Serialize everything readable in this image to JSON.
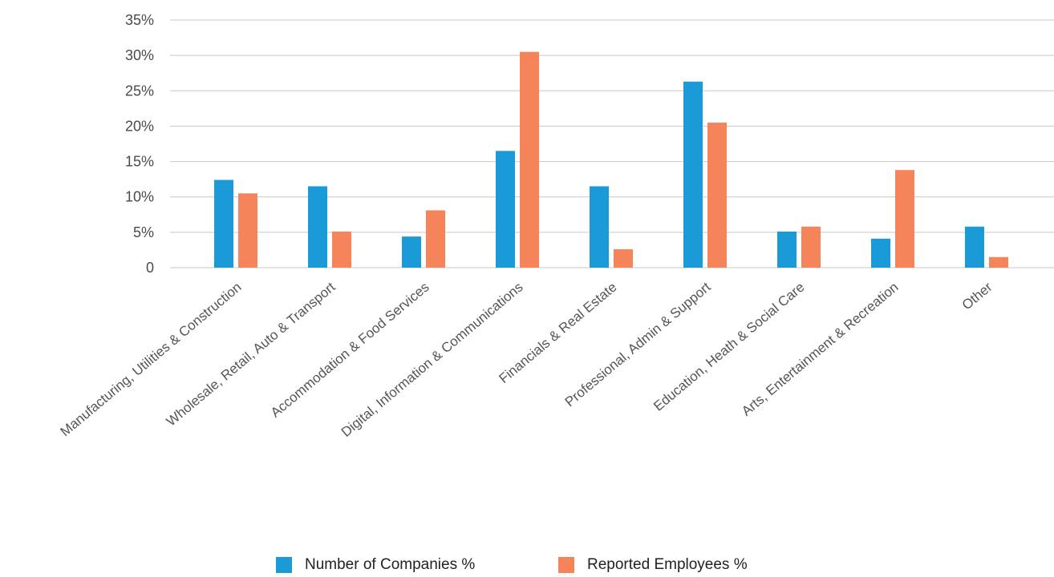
{
  "chart_data": {
    "type": "bar",
    "categories": [
      "Manufacturing, Utilities & Construction",
      "Wholesale, Retail, Auto & Transport",
      "Accommodation & Food Services",
      "Digital, Information & Communications",
      "Financials & Real Estate",
      "Professional, Admin & Support",
      "Education, Heath & Social Care",
      "Arts, Entertainment & Recreation",
      "Other"
    ],
    "series": [
      {
        "name": "Number of Companies %",
        "color": "#1a9ad6",
        "values": [
          12.4,
          11.5,
          4.4,
          16.5,
          11.5,
          26.3,
          5.1,
          4.1,
          5.8
        ]
      },
      {
        "name": "Reported Employees %",
        "color": "#f5845a",
        "values": [
          10.5,
          5.1,
          8.1,
          30.5,
          2.6,
          20.5,
          5.8,
          13.8,
          1.5
        ]
      }
    ],
    "yticks": [
      "0",
      "5%",
      "10%",
      "15%",
      "20%",
      "25%",
      "30%",
      "35%"
    ],
    "ylim": [
      0,
      35
    ],
    "grid": true,
    "legend_position": "bottom-center"
  }
}
